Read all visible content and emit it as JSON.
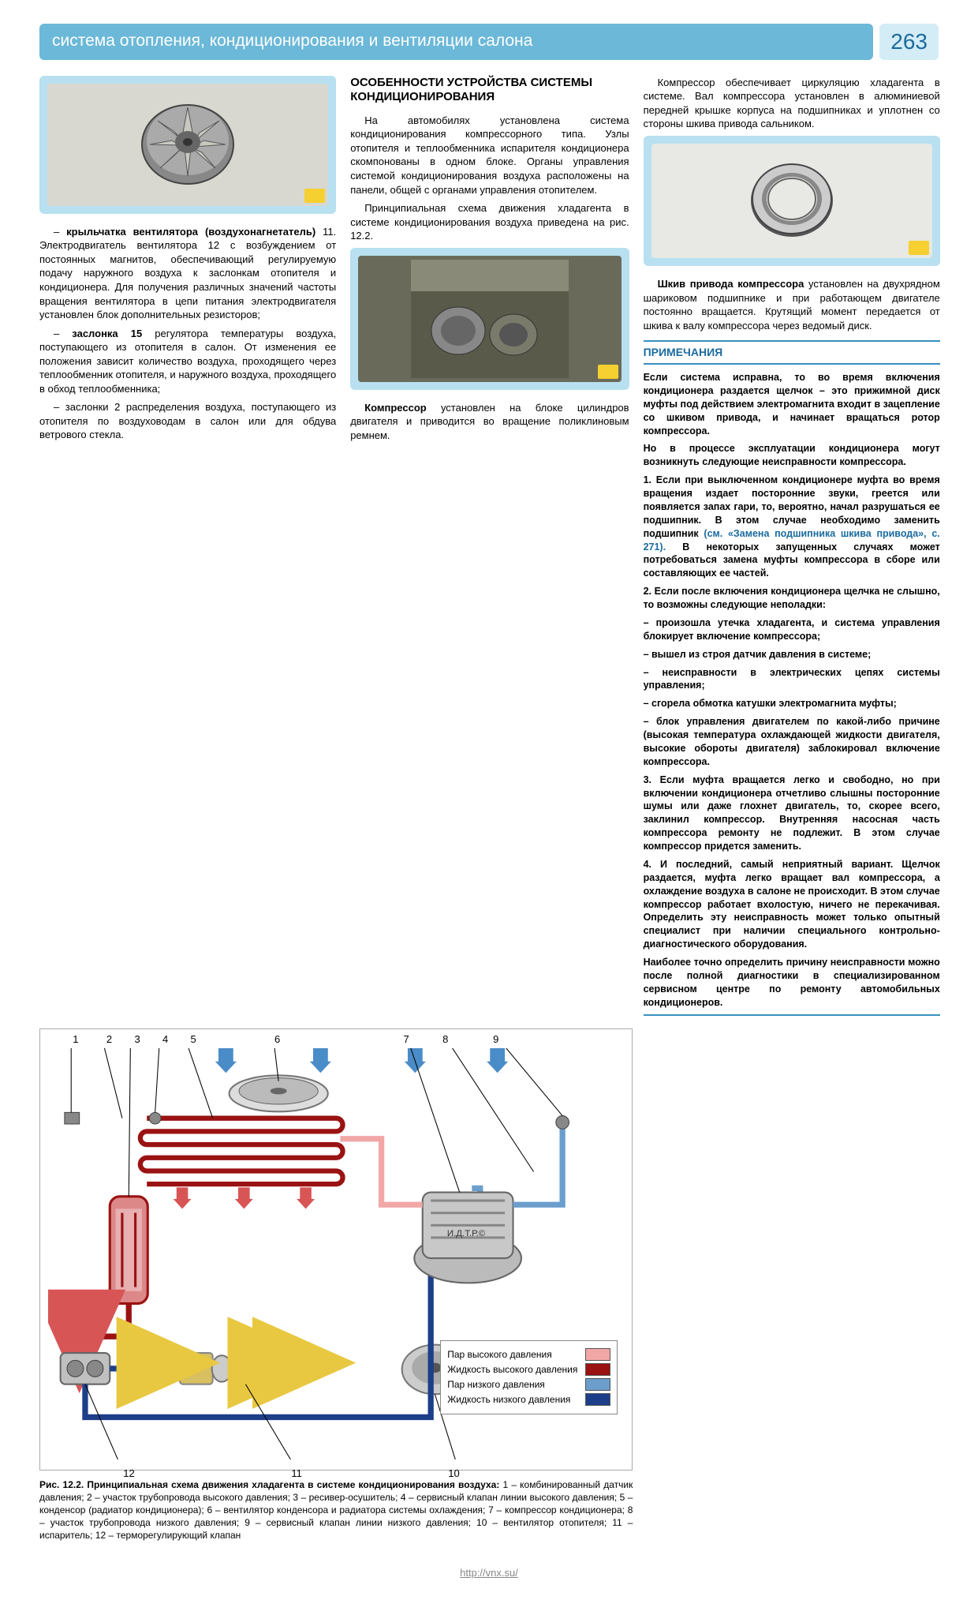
{
  "header": {
    "title": "система отопления, кондиционирования и вентиляции салона",
    "page": "263"
  },
  "col_left": {
    "p1_pre": "– ",
    "p1_bold": "крыльчатка вентилятора (воздухонагнетатель)",
    "p1_rest": " 11. Электродвигатель вентилятора 12 с возбуждением от постоянных магнитов, обеспечивающий регулируемую подачу наружного воздуха к заслонкам отопителя и кондиционера. Для получения различных значений частоты вращения вентилятора в цепи питания электродвигателя установлен блок дополнительных резисторов;",
    "p2_pre": "– ",
    "p2_bold": "заслонка 15",
    "p2_rest": " регулятора температуры воздуха, поступающего из отопителя в салон. От изменения ее положения зависит количество воздуха, проходящего через теплообменник отопителя, и наружного воздуха, проходящего в обход теплообменника;",
    "p3": "– заслонки 2 распределения воздуха, поступающего из отопителя по воздуховодам в салон или для обдува ветрового стекла."
  },
  "col_mid": {
    "heading": "ОСОБЕННОСТИ УСТРОЙСТВА СИСТЕМЫ КОНДИЦИОНИРОВАНИЯ",
    "p1": "На автомобилях установлена система кондиционирования компрессорного типа. Узлы отопителя и теплообменника испарителя кондиционера скомпонованы в одном блоке. Органы управления системой кондиционирования воздуха расположены на панели, общей с органами управления отопителем.",
    "p2": "Принципиальная схема движения хладагента в системе кондиционирования воздуха приведена на рис. 12.2.",
    "p3_bold": "Компрессор",
    "p3_rest": " установлен на блоке цилиндров двигателя и приводится во вращение поликлиновым ремнем."
  },
  "col_right": {
    "p0": "Компрессор обеспечивает циркуляцию хладагента в системе. Вал компрессора установлен в алюминиевой передней крышке корпуса на подшипниках и уплотнен со стороны шкива привода сальником.",
    "p1_bold": "Шкив привода компрессора",
    "p1_rest": " установлен на двухрядном шариковом подшипнике и при работающем двигателе постоянно вращается. Крутящий момент передается от шкива к валу компрессора через ведомый диск.",
    "notes_header": "ПРИМЕЧАНИЯ",
    "n1": "Если система исправна, то во время включения кондиционера раздается щелчок – это прижимной диск муфты под действием электромагнита входит в зацепление со шкивом привода, и начинает вращаться ротор компрессора.",
    "n2": "Но в процессе эксплуатации кондиционера могут возникнуть следующие неисправности компрессора.",
    "n3_pre": "1. Если при выключенном кондиционере муфта во время вращения издает посторонние звуки, греется или появляется запах гари, то, вероятно, начал разрушаться ее подшипник. В этом случае необходимо заменить подшипник ",
    "n3_link": "(см. «Замена подшипника шкива привода», с. 271).",
    "n3_post": " В некоторых запущенных случаях может потребоваться замена муфты компрессора в сборе или составляющих ее частей.",
    "n4": "2. Если после включения кондиционера щелчка не слышно, то возможны следующие неполадки:",
    "n5": "– произошла утечка хладагента, и система управления блокирует включение компрессора;",
    "n6": "– вышел из строя датчик давления в системе;",
    "n7": "– неисправности в электрических цепях системы управления;",
    "n8": "– сгорела обмотка катушки электромагнита муфты;",
    "n9": "– блок управления двигателем по какой-либо причине (высокая температура охлаждающей жидкости двигателя, высокие обороты двигателя) заблокировал включение компрессора.",
    "n10": "3. Если муфта вращается легко и свободно, но при включении кондиционера отчетливо слышны посторонние шумы или даже глохнет двигатель, то, скорее всего, заклинил компрессор. Внутренняя насосная часть компрессора ремонту не подлежит. В этом случае компрессор придется заменить.",
    "n11": "4. И последний, самый неприятный вариант. Щелчок раздается, муфта легко вращает вал компрессора, а охлаждение воздуха в салоне не происходит. В этом случае компрессор работает вхолостую, ничего не перекачивая. Определить эту неисправность может только опытный специалист при наличии специального контрольно-диагностического оборудования.",
    "n12": "Наиболее точно определить причину неисправности можно после полной диагностики в специализированном сервисном центре по ремонту автомобильных кондиционеров."
  },
  "diagram": {
    "top_numbers": [
      "1",
      "2",
      "3",
      "4",
      "5",
      "6",
      "7",
      "8",
      "9"
    ],
    "top_positions": [
      3,
      9,
      14,
      19,
      24,
      39,
      62,
      69,
      78
    ],
    "bottom_numbers": [
      "12",
      "11",
      "10"
    ],
    "bottom_positions": [
      12,
      42,
      70
    ],
    "watermark": "И.Д.Т.Р.©",
    "legend": {
      "rows": [
        {
          "label": "Пар высокого давления",
          "color": "#f2a7a7"
        },
        {
          "label": "Жидкость высокого давления",
          "color": "#9a1212"
        },
        {
          "label": "Пар низкого давления",
          "color": "#6b9ecc"
        },
        {
          "label": "Жидкость низкого давления",
          "color": "#1d3f8a"
        }
      ]
    },
    "colors": {
      "hp_liquid": "#9a1212",
      "hp_vapor": "#f2a7a7",
      "lp_vapor": "#6b9ecc",
      "lp_liquid": "#1d3f8a",
      "arrow_blue": "#4a8cc8",
      "arrow_red": "#d85555",
      "arrow_yellow": "#e8c840"
    },
    "caption_bold": "Рис. 12.2. Принципиальная схема движения хладагента в системе кондиционирования воздуха:",
    "caption_rest": " 1 – комбинированный датчик давления; 2 – участок трубопровода высокого давления; 3 – ресивер-осушитель; 4 – сервисный клапан линии высокого давления; 5 – конденсор (радиатор кондиционера); 6 – вентилятор конденсора и радиатора системы охлаждения; 7 – компрессор кондиционера; 8 – участок трубопровода низкого давления; 9 – сервисный клапан линии низкого давления; 10 – вентилятор отопителя; 11 – испаритель; 12 – терморегулирующий клапан"
  },
  "footer": "http://vnx.su/"
}
